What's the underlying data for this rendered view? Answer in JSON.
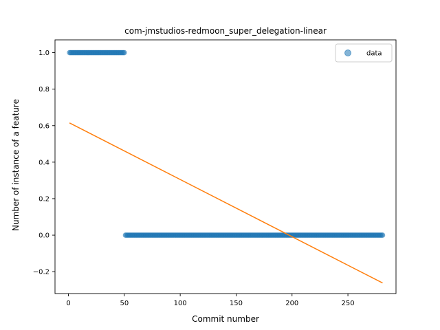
{
  "chart_data": {
    "type": "scatter",
    "title": "com-jmstudios-redmoon_super_delegation-linear",
    "xlabel": "Commit number",
    "ylabel": "Number of instance of a feature",
    "xlim": [
      -12,
      293
    ],
    "ylim": [
      -0.32,
      1.07
    ],
    "xticks": [
      0,
      50,
      100,
      150,
      200,
      250
    ],
    "xtick_labels": [
      "0",
      "50",
      "100",
      "150",
      "200",
      "250"
    ],
    "yticks": [
      -0.2,
      0.0,
      0.2,
      0.4,
      0.6,
      0.8,
      1.0
    ],
    "ytick_labels": [
      "−0.2",
      "0.0",
      "0.2",
      "0.4",
      "0.6",
      "0.8",
      "1.0"
    ],
    "grid": false,
    "legend_position": "top-right",
    "series": [
      {
        "name": "data",
        "kind": "scatter",
        "color": "#1f77b4",
        "segments": [
          {
            "x_start": 1,
            "x_end": 50,
            "y": 1.0
          },
          {
            "x_start": 51,
            "x_end": 281,
            "y": 0.0
          }
        ]
      },
      {
        "kind": "line",
        "color": "#ff7f0e",
        "x": [
          1,
          281
        ],
        "y": [
          0.615,
          -0.262
        ]
      }
    ]
  }
}
